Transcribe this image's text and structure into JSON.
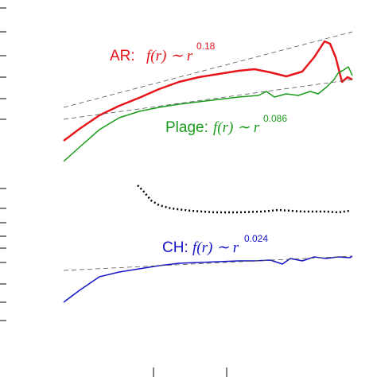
{
  "chart_data": {
    "type": "line",
    "xlim": [
      0,
      474
    ],
    "ylim": [
      0,
      474
    ],
    "xticks": [
      193,
      285
    ],
    "yticks": [
      464,
      434,
      404,
      377,
      350,
      324,
      237,
      212,
      194,
      177,
      162,
      144,
      117,
      94,
      71
    ],
    "series": [
      {
        "color": "#e8141c",
        "width": 2.5,
        "style": "solid",
        "x": [
          80,
          100,
          125,
          150,
          175,
          200,
          225,
          250,
          275,
          300,
          320,
          340,
          360,
          380,
          395,
          408,
          415,
          422,
          430,
          437,
          443
        ],
        "values": [
          297,
          312,
          329,
          341,
          351,
          362,
          371,
          377,
          381,
          385,
          387,
          383,
          378,
          384,
          402,
          422,
          419,
          402,
          371,
          377,
          374
        ]
      },
      {
        "color": "#1a9a1a",
        "width": 1.5,
        "style": "solid",
        "x": [
          80,
          100,
          125,
          150,
          175,
          200,
          225,
          250,
          275,
          300,
          325,
          335,
          345,
          360,
          375,
          390,
          400,
          410,
          420,
          425,
          432,
          438,
          443
        ],
        "values": [
          271,
          289,
          311,
          326,
          334,
          339,
          343,
          346,
          349,
          352,
          354,
          359,
          352,
          356,
          354,
          359,
          356,
          364,
          374,
          382,
          386,
          390,
          379
        ]
      },
      {
        "color": "#000000",
        "width": 2.5,
        "style": "dotted",
        "x": [
          173,
          180,
          190,
          200,
          215,
          240,
          270,
          300,
          330,
          350,
          380,
          410,
          425,
          440
        ],
        "values": [
          241,
          234,
          222,
          216,
          212,
          209,
          207,
          207,
          208,
          210,
          208,
          208,
          207,
          209
        ]
      },
      {
        "color": "#1414c8",
        "width": 1.5,
        "style": "solid",
        "x": [
          80,
          100,
          125,
          150,
          175,
          200,
          225,
          250,
          275,
          300,
          320,
          340,
          355,
          365,
          380,
          395,
          410,
          425,
          440,
          443
        ],
        "values": [
          94,
          109,
          126,
          132,
          136,
          140,
          143,
          144,
          145,
          146,
          146,
          147,
          142,
          149,
          146,
          151,
          149,
          151,
          150,
          152
        ]
      },
      {
        "color": "#555555",
        "width": 0.8,
        "style": "dashed",
        "x": [
          80,
          443
        ],
        "values": [
          339,
          434
        ]
      },
      {
        "color": "#555555",
        "width": 0.8,
        "style": "dashed",
        "x": [
          80,
          443
        ],
        "values": [
          324,
          374
        ]
      },
      {
        "color": "#555555",
        "width": 0.8,
        "style": "dashed",
        "x": [
          80,
          443
        ],
        "values": [
          134,
          152
        ]
      }
    ],
    "annotations": [
      {
        "label": "AR:",
        "formula": "f(r) ∼ r",
        "exponent": "0.18",
        "color": "#e8141c"
      },
      {
        "label": "Plage:",
        "formula": "f(r) ∼ r",
        "exponent": "0.086",
        "color": "#1a9a1a"
      },
      {
        "label": "CH:",
        "formula": "f(r) ∼ r",
        "exponent": "0.024",
        "color": "#1414c8"
      }
    ]
  }
}
